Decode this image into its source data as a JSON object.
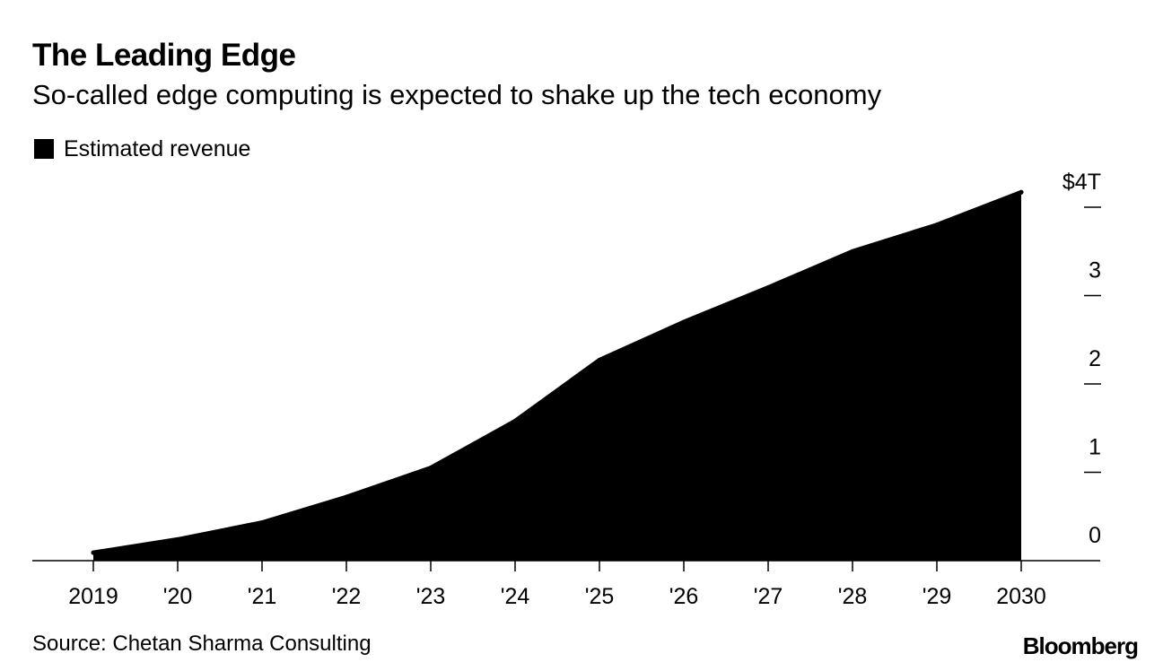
{
  "header": {
    "title": "The Leading Edge",
    "subtitle": "So-called edge computing is expected to shake up the tech economy"
  },
  "legend": {
    "label": "Estimated revenue"
  },
  "footer": {
    "source": "Source: Chetan Sharma Consulting",
    "brand": "Bloomberg"
  },
  "colors": {
    "fill": "#000000",
    "axis": "#000000",
    "background": "#ffffff"
  },
  "chart_data": {
    "type": "area",
    "title": "The Leading Edge",
    "subtitle": "So-called edge computing is expected to shake up the tech economy",
    "xlabel": "",
    "ylabel": "",
    "categories": [
      "2019",
      "'20",
      "'21",
      "'22",
      "'23",
      "'24",
      "'25",
      "'26",
      "'27",
      "'28",
      "'29",
      "2030"
    ],
    "series": [
      {
        "name": "Estimated revenue",
        "values": [
          0.09,
          0.24,
          0.43,
          0.72,
          1.05,
          1.58,
          2.27,
          2.7,
          3.09,
          3.5,
          3.8,
          4.17
        ]
      }
    ],
    "yticks": [
      0,
      1,
      2,
      3,
      4
    ],
    "ytick_labels": [
      "0",
      "1",
      "2",
      "3",
      "$4T"
    ],
    "ylim": [
      0,
      4.2
    ],
    "y_axis_side": "right",
    "grid": false,
    "legend_position": "top-left"
  }
}
